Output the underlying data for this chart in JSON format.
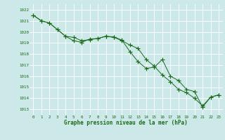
{
  "line1": [
    1021.5,
    1021.0,
    1020.8,
    1020.2,
    1019.6,
    1019.5,
    1019.2,
    1019.3,
    1019.4,
    1019.6,
    1019.5,
    1019.2,
    1018.8,
    1018.5,
    1017.5,
    1016.9,
    1016.1,
    1015.5,
    1014.8,
    1014.5,
    1014.0,
    1013.3,
    1014.1,
    1014.3
  ],
  "line2": [
    1021.5,
    1021.0,
    1020.8,
    1020.2,
    1019.6,
    1019.2,
    1019.05,
    1019.35,
    1019.4,
    1019.6,
    1019.55,
    1019.25,
    1018.2,
    1017.3,
    1016.7,
    1016.8,
    1017.5,
    1016.0,
    1015.6,
    1014.8,
    1014.6,
    1013.2,
    1014.1,
    1014.3
  ],
  "ylim_min": 1012.5,
  "ylim_max": 1022.5,
  "yticks": [
    1013,
    1014,
    1015,
    1016,
    1017,
    1018,
    1019,
    1020,
    1021,
    1022
  ],
  "xticks": [
    0,
    1,
    2,
    3,
    4,
    5,
    6,
    7,
    8,
    9,
    10,
    11,
    12,
    13,
    14,
    15,
    16,
    17,
    18,
    19,
    20,
    21,
    22,
    23
  ],
  "xlabel": "Graphe pression niveau de la mer (hPa)",
  "line_color": "#1a6b1a",
  "bg_color": "#cce8e8",
  "grid_color": "#b8d8d8",
  "marker": "+",
  "marker_size": 4
}
